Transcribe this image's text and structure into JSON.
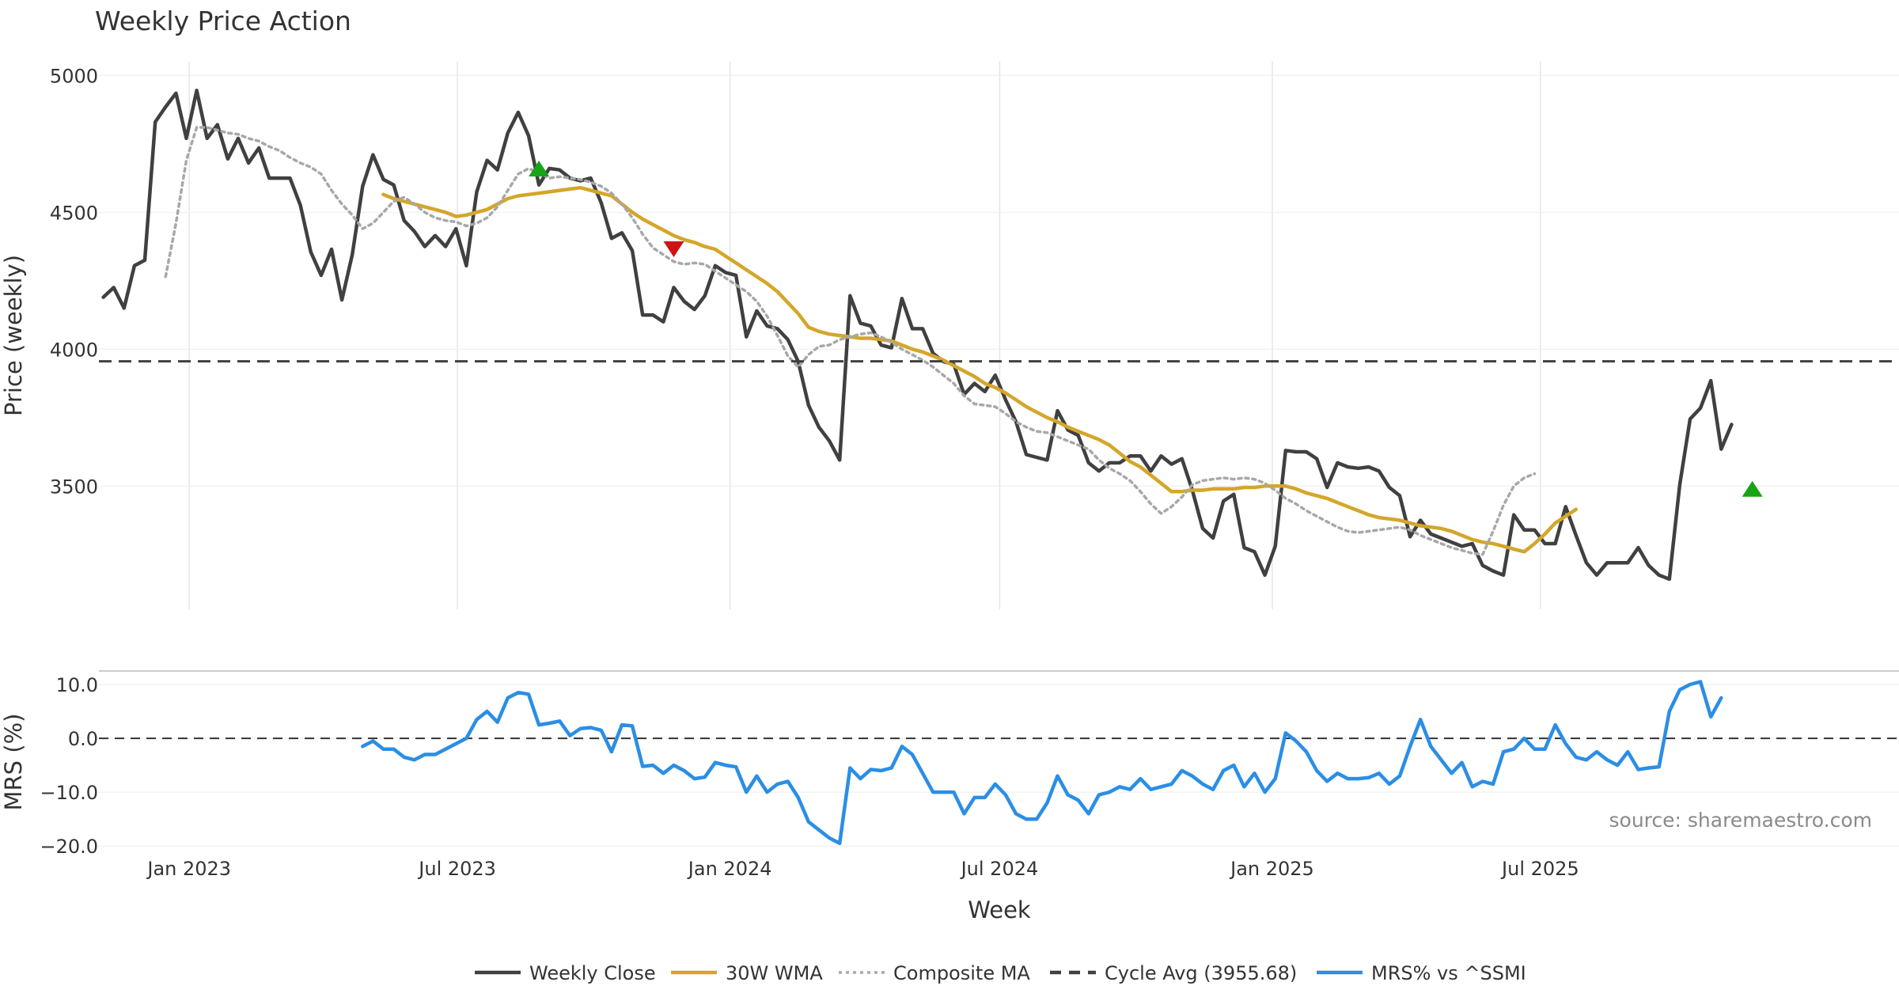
{
  "chart_data": [
    {
      "type": "line",
      "title": "Weekly Price Action",
      "ylabel": "Price (weekly)",
      "ylim": [
        3050,
        5050
      ],
      "yticks": [
        "3500",
        "4000",
        "4500",
        "5000"
      ],
      "x_range": [
        "2022-11-01",
        "2026-02-28"
      ],
      "xticks": [
        {
          "date": "2023-01-01",
          "label": "Jan 2023"
        },
        {
          "date": "2023-07-01",
          "label": "Jul 2023"
        },
        {
          "date": "2024-01-01",
          "label": "Jan 2024"
        },
        {
          "date": "2024-07-01",
          "label": "Jul 2024"
        },
        {
          "date": "2025-01-01",
          "label": "Jan 2025"
        },
        {
          "date": "2025-07-01",
          "label": "Jul 2025"
        }
      ],
      "cycle_avg": 3955.68,
      "series": [
        {
          "name": "Weekly Close",
          "color": "#404040",
          "style": "solid",
          "start": "2022-11-04",
          "step_days": 7,
          "values": [
            4190,
            4225,
            4150,
            4305,
            4325,
            4830,
            4885,
            4935,
            4770,
            4945,
            4770,
            4820,
            4695,
            4770,
            4680,
            4735,
            4625,
            4625,
            4625,
            4525,
            4355,
            4270,
            4365,
            4180,
            4345,
            4595,
            4710,
            4620,
            4600,
            4470,
            4430,
            4375,
            4415,
            4375,
            4440,
            4305,
            4575,
            4690,
            4655,
            4790,
            4865,
            4780,
            4600,
            4660,
            4655,
            4625,
            4615,
            4625,
            4535,
            4405,
            4425,
            4360,
            4125,
            4125,
            4100,
            4225,
            4175,
            4145,
            4195,
            4305,
            4280,
            4270,
            4045,
            4140,
            4085,
            4075,
            4035,
            3955,
            3795,
            3715,
            3665,
            3595,
            4195,
            4095,
            4085,
            4015,
            4005,
            4185,
            4075,
            4075,
            3985,
            3955,
            3945,
            3835,
            3875,
            3845,
            3905,
            3815,
            3735,
            3615,
            3605,
            3595,
            3775,
            3705,
            3685,
            3585,
            3555,
            3585,
            3585,
            3610,
            3610,
            3555,
            3610,
            3580,
            3600,
            3485,
            3345,
            3310,
            3445,
            3470,
            3275,
            3260,
            3175,
            3280,
            3630,
            3625,
            3625,
            3600,
            3495,
            3585,
            3570,
            3565,
            3570,
            3555,
            3495,
            3465,
            3315,
            3375,
            3325,
            3310,
            3295,
            3280,
            3290,
            3210,
            3190,
            3175,
            3395,
            3340,
            3340,
            3290,
            3290,
            3425,
            3320,
            3220,
            3175,
            3220,
            3220,
            3220,
            3275,
            3210,
            3175,
            3160,
            3505,
            3745,
            3785,
            3885,
            3635,
            3725
          ]
        },
        {
          "name": "30W WMA",
          "color": "#d4a62a",
          "style": "solid",
          "start": "2023-05-12",
          "step_days": 7,
          "values": [
            4565,
            4550,
            4540,
            4530,
            4520,
            4510,
            4500,
            4485,
            4490,
            4500,
            4510,
            4530,
            4550,
            4560,
            4565,
            4570,
            4575,
            4580,
            4585,
            4590,
            4580,
            4570,
            4560,
            4530,
            4500,
            4475,
            4455,
            4435,
            4415,
            4400,
            4390,
            4375,
            4365,
            4340,
            4315,
            4290,
            4265,
            4240,
            4210,
            4170,
            4130,
            4080,
            4065,
            4055,
            4050,
            4045,
            4040,
            4040,
            4035,
            4030,
            4015,
            4000,
            3990,
            3975,
            3960,
            3940,
            3920,
            3900,
            3875,
            3860,
            3840,
            3815,
            3790,
            3770,
            3750,
            3735,
            3715,
            3700,
            3685,
            3670,
            3650,
            3620,
            3590,
            3570,
            3540,
            3510,
            3480,
            3480,
            3485,
            3485,
            3490,
            3490,
            3490,
            3495,
            3495,
            3500,
            3500,
            3500,
            3490,
            3475,
            3465,
            3455,
            3440,
            3425,
            3410,
            3395,
            3385,
            3380,
            3375,
            3365,
            3355,
            3350,
            3345,
            3335,
            3320,
            3305,
            3295,
            3290,
            3280,
            3270,
            3260,
            3290,
            3325,
            3365,
            3390,
            3415
          ]
        },
        {
          "name": "Composite MA",
          "color": "#a8a8a8",
          "style": "dotted",
          "start": "2022-12-16",
          "step_days": 7,
          "values": [
            4265,
            4460,
            4690,
            4810,
            4810,
            4800,
            4790,
            4785,
            4770,
            4760,
            4740,
            4725,
            4700,
            4680,
            4665,
            4640,
            4580,
            4530,
            4490,
            4440,
            4460,
            4500,
            4540,
            4555,
            4530,
            4500,
            4480,
            4470,
            4465,
            4450,
            4460,
            4480,
            4520,
            4580,
            4640,
            4660,
            4645,
            4625,
            4630,
            4625,
            4620,
            4610,
            4595,
            4570,
            4530,
            4480,
            4420,
            4370,
            4345,
            4320,
            4310,
            4315,
            4310,
            4285,
            4260,
            4235,
            4210,
            4175,
            4120,
            4050,
            3975,
            3935,
            3980,
            4010,
            4015,
            4035,
            4045,
            4055,
            4060,
            4045,
            4025,
            4000,
            3980,
            3960,
            3935,
            3905,
            3875,
            3830,
            3800,
            3795,
            3790,
            3765,
            3735,
            3715,
            3700,
            3695,
            3680,
            3665,
            3650,
            3635,
            3595,
            3565,
            3545,
            3520,
            3480,
            3435,
            3400,
            3425,
            3460,
            3505,
            3520,
            3525,
            3530,
            3525,
            3530,
            3525,
            3510,
            3485,
            3455,
            3435,
            3410,
            3390,
            3370,
            3350,
            3335,
            3330,
            3335,
            3340,
            3345,
            3350,
            3340,
            3320,
            3305,
            3290,
            3275,
            3265,
            3255,
            3250,
            3335,
            3430,
            3500,
            3530,
            3545
          ]
        },
        {
          "name": "Cycle Avg (3955.68)",
          "color": "#404040",
          "style": "dashed",
          "value": 3955.68
        }
      ],
      "markers": [
        {
          "date": "2023-08-25",
          "value": 4660,
          "type": "up",
          "color": "#18a318"
        },
        {
          "date": "2023-11-24",
          "value": 4365,
          "type": "down",
          "color": "#cc1414"
        },
        {
          "date": "2025-11-21",
          "value": 3490,
          "type": "up",
          "color": "#18a318"
        }
      ]
    },
    {
      "type": "line",
      "ylabel": "MRS (%)",
      "ylim": [
        -21,
        12.5
      ],
      "yticks": [
        "10.0",
        "0.0",
        "−10.0",
        "−20.0"
      ],
      "xlabel": "Week",
      "zero_line": true,
      "source": "source: sharemaestro.com",
      "series": [
        {
          "name": "MRS% vs ^SSMI",
          "color": "#2b8ee5",
          "style": "solid",
          "start": "2023-04-28",
          "step_days": 7,
          "values": [
            -1.5,
            -0.5,
            -2,
            -2,
            -3.5,
            -4,
            -3,
            -3,
            -2,
            -1,
            0,
            3.5,
            5,
            3,
            7.5,
            8.5,
            8.2,
            2.5,
            2.8,
            3.2,
            0.5,
            1.8,
            2,
            1.5,
            -2.5,
            2.5,
            2.3,
            -5.2,
            -5,
            -6.5,
            -5,
            -6,
            -7.5,
            -7.2,
            -4.5,
            -5,
            -5.3,
            -10,
            -7,
            -10,
            -8.5,
            -8,
            -11,
            -15.5,
            -17,
            -18.5,
            -19.5,
            -5.5,
            -7.5,
            -5.8,
            -6,
            -5.5,
            -1.5,
            -3,
            -6.5,
            -10,
            -10,
            -10,
            -14,
            -11,
            -11,
            -8.5,
            -10.5,
            -14,
            -15,
            -15,
            -12,
            -7,
            -10.5,
            -11.5,
            -14,
            -10.5,
            -10,
            -9,
            -9.5,
            -7.5,
            -9.5,
            -9,
            -8.5,
            -6,
            -7,
            -8.5,
            -9.5,
            -6,
            -5,
            -9,
            -6.5,
            -10,
            -7.5,
            1,
            -0.5,
            -2.5,
            -6,
            -8,
            -6.5,
            -7.5,
            -7.5,
            -7.3,
            -6.5,
            -8.5,
            -7,
            -1.5,
            3.5,
            -1.5,
            -4,
            -6.5,
            -4.5,
            -9,
            -8,
            -8.5,
            -2.5,
            -2,
            0,
            -2,
            -2,
            2.5,
            -1,
            -3.5,
            -4,
            -2.5,
            -4,
            -5,
            -2.5,
            -5.8,
            -5.5,
            -5.3,
            5,
            9,
            10,
            10.5,
            4,
            7.5
          ]
        }
      ]
    }
  ],
  "legend": [
    {
      "label": "Weekly Close",
      "color": "#404040",
      "style": "solid"
    },
    {
      "label": "30W WMA",
      "color": "#d4a62a",
      "style": "solid"
    },
    {
      "label": "Composite MA",
      "color": "#a8a8a8",
      "style": "dotted"
    },
    {
      "label": "Cycle Avg (3955.68)",
      "color": "#404040",
      "style": "dashed"
    },
    {
      "label": "MRS% vs ^SSMI",
      "color": "#2b8ee5",
      "style": "solid"
    }
  ]
}
